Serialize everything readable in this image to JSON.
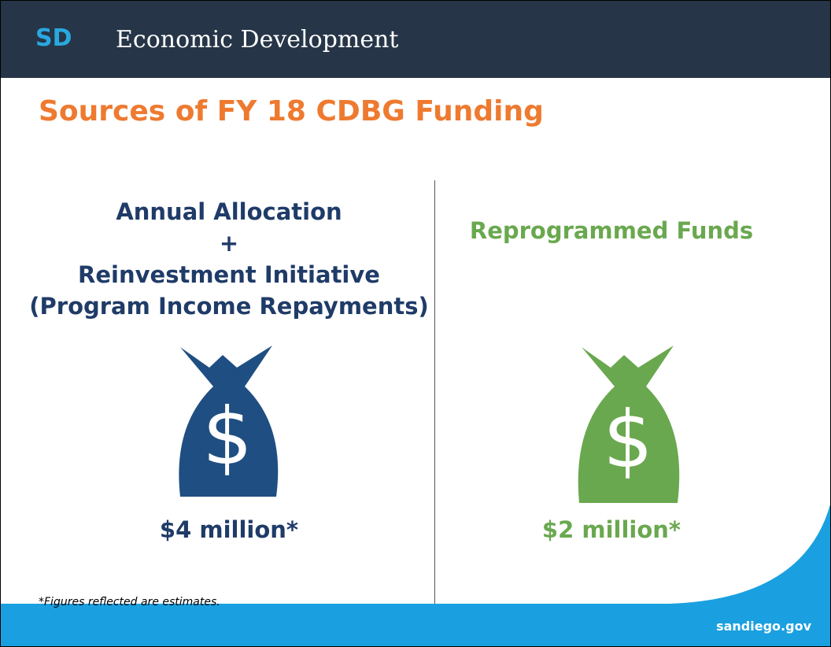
{
  "header": {
    "logo": "SD",
    "title": "Economic Development"
  },
  "slide_title": "Sources of FY 18 CDBG Funding",
  "left": {
    "heading_lines": [
      "Annual Allocation",
      "+",
      "Reinvestment Initiative",
      "(Program Income Repayments)"
    ],
    "icon": "$",
    "amount": "$4 million*"
  },
  "right": {
    "heading": "Reprogrammed Funds",
    "icon": "$",
    "amount": "$2 million*"
  },
  "footnote": "*Figures reflected are estimates.",
  "footer": {
    "url": "sandiego.gov"
  }
}
